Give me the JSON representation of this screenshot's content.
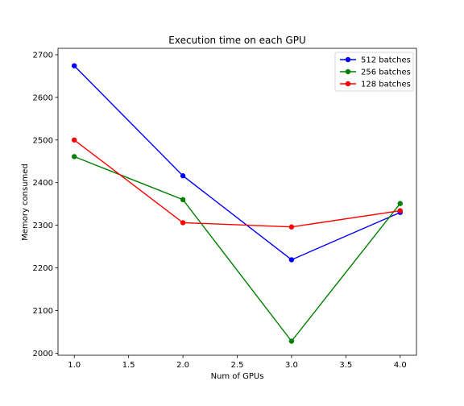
{
  "chart_data": {
    "type": "line",
    "title": "Execution time on each GPU",
    "xlabel": "Num of GPUs",
    "ylabel": "Memory consumed",
    "x": [
      1.0,
      2.0,
      3.0,
      4.0
    ],
    "xlim": [
      0.85,
      4.15
    ],
    "ylim": [
      1995,
      2715
    ],
    "xticks": [
      1.0,
      1.5,
      2.0,
      2.5,
      3.0,
      3.5,
      4.0
    ],
    "xtick_labels": [
      "1.0",
      "1.5",
      "2.0",
      "2.5",
      "3.0",
      "3.5",
      "4.0"
    ],
    "yticks": [
      2000,
      2100,
      2200,
      2300,
      2400,
      2500,
      2600,
      2700
    ],
    "ytick_labels": [
      "2000",
      "2100",
      "2200",
      "2300",
      "2400",
      "2500",
      "2600",
      "2700"
    ],
    "grid": false,
    "legend_position": "top-right",
    "series": [
      {
        "name": "512 batches",
        "color": "#0000ff",
        "values": [
          2674,
          2416,
          2219,
          2330
        ]
      },
      {
        "name": "256 batches",
        "color": "#008000",
        "values": [
          2461,
          2360,
          2028,
          2351
        ]
      },
      {
        "name": "128 batches",
        "color": "#ff0000",
        "values": [
          2500,
          2306,
          2296,
          2334
        ]
      }
    ]
  }
}
